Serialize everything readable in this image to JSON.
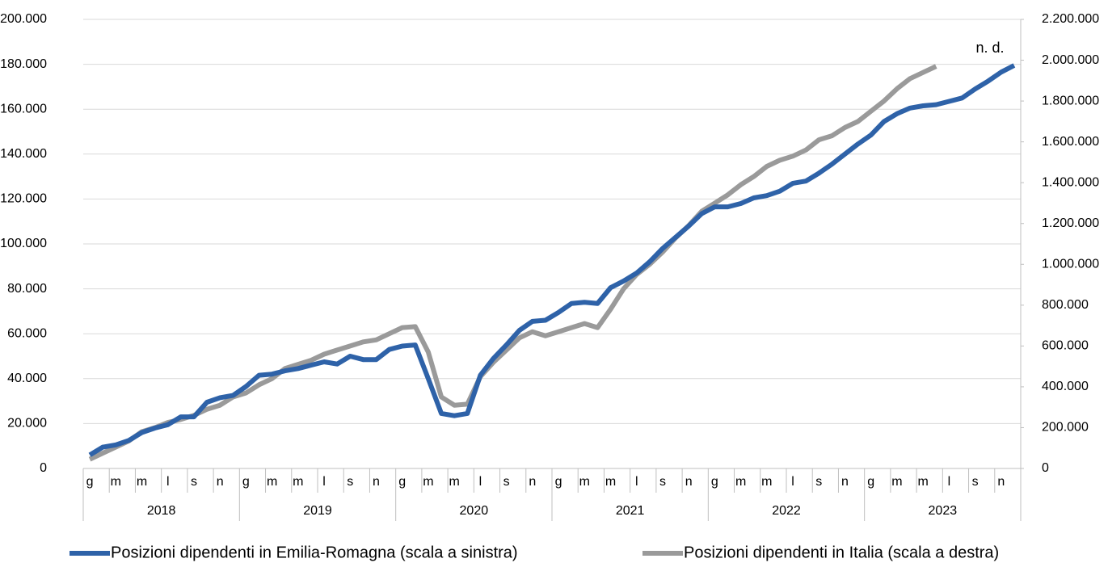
{
  "chart_data": {
    "type": "line",
    "categories": [
      "g",
      null,
      "m",
      null,
      "m",
      null,
      "l",
      null,
      "s",
      null,
      "n",
      null,
      "g",
      null,
      "m",
      null,
      "m",
      null,
      "l",
      null,
      "s",
      null,
      "n",
      null,
      "g",
      null,
      "m",
      null,
      "m",
      null,
      "l",
      null,
      "s",
      null,
      "n",
      null,
      "g",
      null,
      "m",
      null,
      "m",
      null,
      "l",
      null,
      "s",
      null,
      "n",
      null,
      "g",
      null,
      "m",
      null,
      "m",
      null,
      "l",
      null,
      "s",
      null,
      "n",
      null,
      "g",
      null,
      "m",
      null,
      "m",
      null,
      "l",
      null,
      "s",
      null,
      "n",
      null
    ],
    "year_groups": [
      "2018",
      "2019",
      "2020",
      "2021",
      "2022",
      "2023"
    ],
    "series": [
      {
        "name": "Posizioni dipendenti in Emilia-Romagna (scala a sinistra)",
        "color": "#2e62a8",
        "axis": "y",
        "values": [
          6000,
          9500,
          10500,
          12500,
          16000,
          18000,
          19500,
          23000,
          23000,
          29500,
          31500,
          32500,
          36500,
          41500,
          42000,
          43500,
          44500,
          46000,
          47500,
          46500,
          50000,
          48500,
          48500,
          53000,
          54500,
          55000,
          40000,
          24500,
          23500,
          24500,
          41500,
          49000,
          55000,
          61500,
          65500,
          66000,
          69500,
          73500,
          74000,
          73500,
          80500,
          83500,
          87000,
          92000,
          98000,
          103000,
          108000,
          113500,
          116500,
          116500,
          118000,
          120500,
          121500,
          123500,
          127000,
          128000,
          131500,
          135500,
          140000,
          144500,
          148500,
          154500,
          158000,
          160500,
          161500,
          162000,
          163500,
          165000,
          169000,
          172500,
          176500,
          179500
        ]
      },
      {
        "name": "Posizioni dipendenti in Italia (scala a destra)",
        "color": "#9a9a9a",
        "axis": "y2",
        "values": [
          45000,
          75000,
          105000,
          135000,
          180000,
          200000,
          225000,
          240000,
          260000,
          290000,
          310000,
          350000,
          370000,
          410000,
          440000,
          490000,
          510000,
          530000,
          560000,
          580000,
          600000,
          620000,
          630000,
          660000,
          690000,
          695000,
          570000,
          350000,
          310000,
          315000,
          450000,
          520000,
          580000,
          640000,
          670000,
          650000,
          670000,
          690000,
          710000,
          690000,
          780000,
          880000,
          950000,
          1000000,
          1060000,
          1130000,
          1190000,
          1260000,
          1300000,
          1340000,
          1390000,
          1430000,
          1480000,
          1510000,
          1530000,
          1560000,
          1610000,
          1630000,
          1670000,
          1700000,
          1750000,
          1800000,
          1860000,
          1910000,
          1940000,
          1970000,
          null,
          null,
          null,
          null,
          null,
          null
        ]
      }
    ],
    "annotation": "n. d.",
    "ylim": [
      0,
      200000
    ],
    "yticks": [
      0,
      {
        "value": 20000,
        "label": "20.000"
      },
      {
        "value": 40000,
        "label": "40.000"
      },
      {
        "value": 60000,
        "label": "60.000"
      },
      {
        "value": 80000,
        "label": "80.000"
      },
      {
        "value": 100000,
        "label": "100.000"
      },
      {
        "value": 120000,
        "label": "120.000"
      },
      {
        "value": 140000,
        "label": "140.000"
      },
      {
        "value": 160000,
        "label": "160.000"
      },
      {
        "value": 180000,
        "label": "180.000"
      },
      {
        "value": 200000,
        "label": "200.000"
      }
    ],
    "y2lim": [
      0,
      2200000
    ],
    "y2ticks": [
      0,
      {
        "value": 200000,
        "label": "200.000"
      },
      {
        "value": 400000,
        "label": "400.000"
      },
      {
        "value": 600000,
        "label": "600.000"
      },
      {
        "value": 800000,
        "label": "800.000"
      },
      {
        "value": 1000000,
        "label": "1.000.000"
      },
      {
        "value": 1200000,
        "label": "1.200.000"
      },
      {
        "value": 1400000,
        "label": "1.400.000"
      },
      {
        "value": 1600000,
        "label": "1.600.000"
      },
      {
        "value": 1800000,
        "label": "1.800.000"
      },
      {
        "value": 2000000,
        "label": "2.000.000"
      },
      {
        "value": 2200000,
        "label": "2.200.000"
      }
    ],
    "grid": true,
    "legend": "bottom"
  }
}
